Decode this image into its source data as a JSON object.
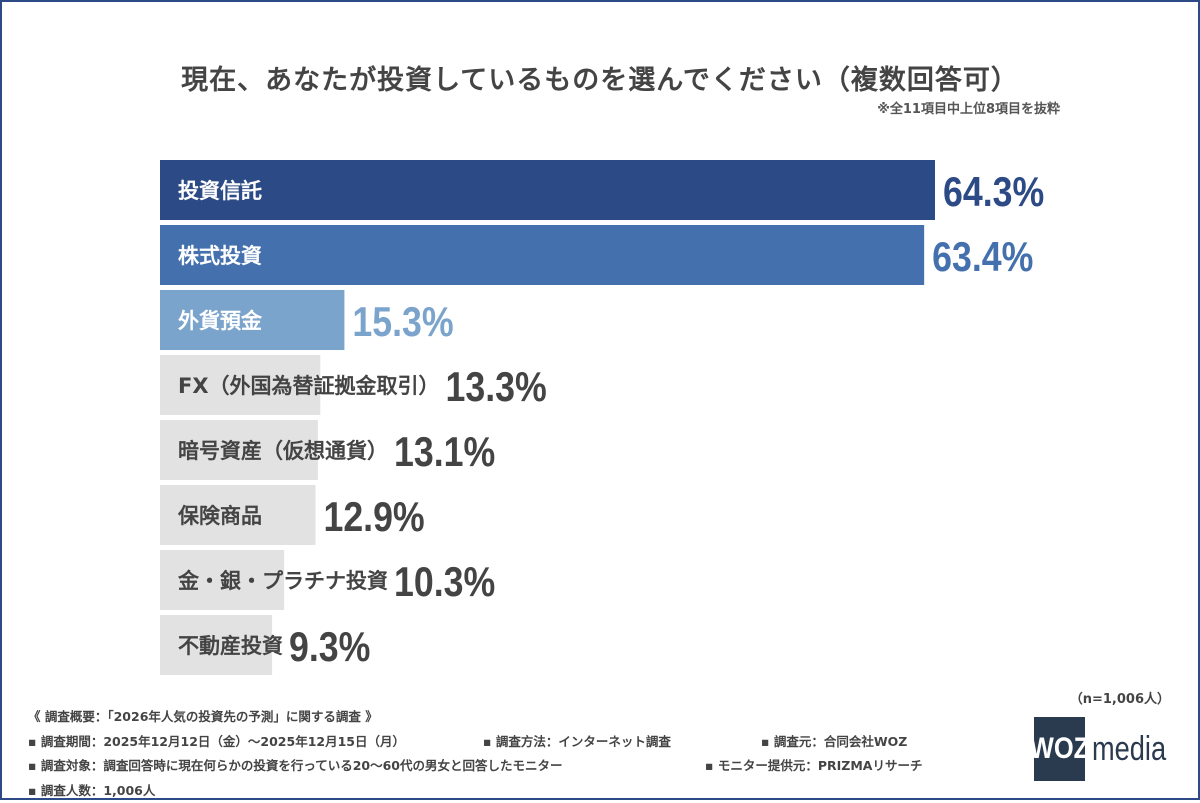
{
  "title": "現在、あなたが投資しているものを選んでください（複数回答可）",
  "note": "※全11項目中上位8項目を抜粋",
  "sample": "（n=1,006人）",
  "chart_data": {
    "type": "bar",
    "orientation": "horizontal",
    "title": "現在、あなたが投資しているものを選んでください（複数回答可）",
    "categories": [
      "投資信託",
      "株式投資",
      "外貨預金",
      "FX（外国為替証拠金取引）",
      "暗号資産（仮想通貨）",
      "保険商品",
      "金・銀・プラチナ投資",
      "不動産投資"
    ],
    "values": [
      64.3,
      63.4,
      15.3,
      13.3,
      13.1,
      12.9,
      10.3,
      9.3
    ],
    "value_labels": [
      "64.3%",
      "63.4%",
      "15.3%",
      "13.3%",
      "13.1%",
      "12.9%",
      "10.3%",
      "9.3%"
    ],
    "unit": "%",
    "xlim": [
      0,
      100
    ],
    "grid": false,
    "bar_colors": [
      "#2c4a85",
      "#4471ae",
      "#7ba4cc",
      "#e2e2e2",
      "#e2e2e2",
      "#e2e2e2",
      "#e2e2e2",
      "#e2e2e2"
    ],
    "label_colors": [
      "#ffffff",
      "#ffffff",
      "#ffffff",
      "#444444",
      "#444444",
      "#444444",
      "#444444",
      "#444444"
    ],
    "value_colors": [
      "#2c4a85",
      "#4471ae",
      "#7ba4cc",
      "#444444",
      "#444444",
      "#444444",
      "#444444",
      "#444444"
    ]
  },
  "footer": {
    "heading": "《 調査概要：「2026年人気の投資先の予測」に関する調査 》",
    "rows": [
      [
        "▪ 調査期間：2025年12月12日（金）〜2025年12月15日（月）",
        "▪ 調査方法：インターネット調査",
        "▪ 調査元：合同会社WOZ"
      ],
      [
        "▪ 調査対象：調査回答時に現在何らかの投資を行っている20〜60代の男女と回答したモニター",
        "▪ モニター提供元：PRIZMAリサーチ"
      ],
      [
        "▪ 調査人数：1,006人"
      ]
    ]
  },
  "logo": {
    "box": "WOZ",
    "text": "media"
  }
}
